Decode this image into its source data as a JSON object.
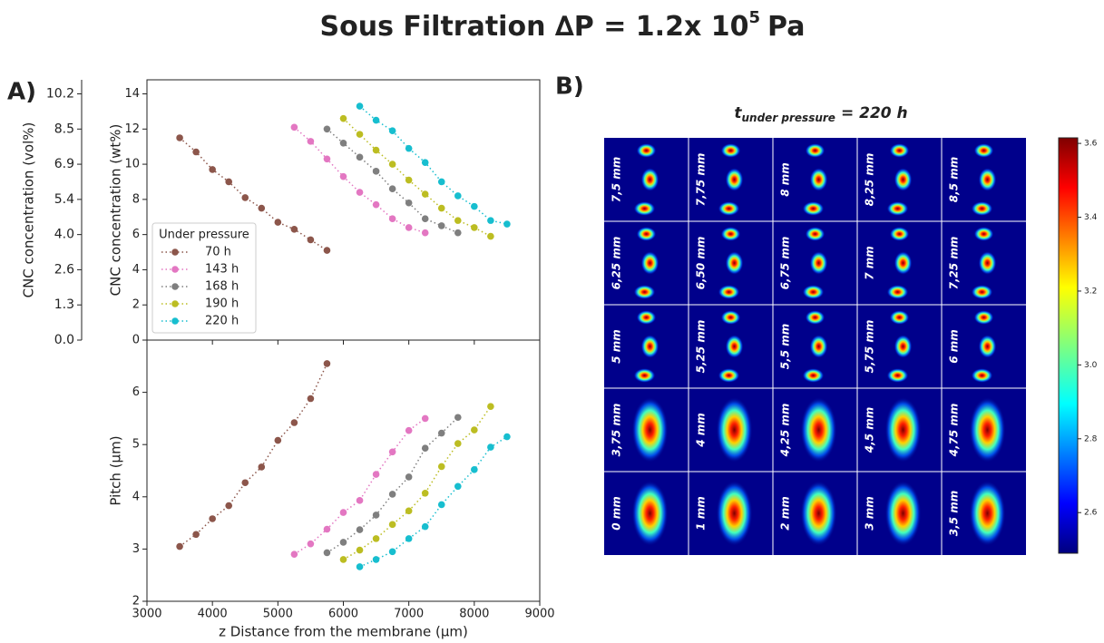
{
  "title": {
    "text": "Sous Filtration ∆P = 1.2x 10",
    "superscript": "5",
    "suffix": "Pa"
  },
  "panel_labels": [
    "A)",
    "B)"
  ],
  "chart_data": [
    {
      "type": "line",
      "ylabel": "CNC concentration (wt%)",
      "y2label": "CNC concentration (vol%)",
      "xlim": [
        3000,
        9000
      ],
      "ylim": [
        0,
        14.8
      ],
      "yticks": [
        0,
        2,
        4,
        6,
        8,
        10,
        12,
        14
      ],
      "y2ticks": [
        {
          "value": 0,
          "label": "0.0"
        },
        1.3,
        2.6,
        {
          "value": 4,
          "label": "4.0"
        },
        5.4,
        6.9,
        8.5,
        10.2
      ],
      "legend_title": "Under pressure",
      "legend": "lower left",
      "series": [
        {
          "name": "70 h",
          "color": "#8c564b",
          "x": [
            3500,
            3750,
            4000,
            4250,
            4500,
            4750,
            5000,
            5250,
            5500,
            5750
          ],
          "values": [
            11.5,
            10.7,
            9.7,
            9.0,
            8.1,
            7.5,
            6.7,
            6.3,
            5.7,
            5.1
          ]
        },
        {
          "name": "143 h",
          "color": "#e377c2",
          "x": [
            5250,
            5500,
            5750,
            6000,
            6250,
            6500,
            6750,
            7000,
            7250
          ],
          "values": [
            12.1,
            11.3,
            10.3,
            9.3,
            8.4,
            7.7,
            6.9,
            6.4,
            6.1
          ]
        },
        {
          "name": "168 h",
          "color": "#7f7f7f",
          "x": [
            5750,
            6000,
            6250,
            6500,
            6750,
            7000,
            7250,
            7500,
            7750
          ],
          "values": [
            12.0,
            11.2,
            10.4,
            9.6,
            8.6,
            7.8,
            6.9,
            6.5,
            6.1
          ]
        },
        {
          "name": "190 h",
          "color": "#bcbd22",
          "x": [
            6000,
            6250,
            6500,
            6750,
            7000,
            7250,
            7500,
            7750,
            8000,
            8250
          ],
          "values": [
            12.6,
            11.7,
            10.8,
            10.0,
            9.1,
            8.3,
            7.5,
            6.8,
            6.4,
            5.9
          ]
        },
        {
          "name": "220 h",
          "color": "#17becf",
          "x": [
            6250,
            6500,
            6750,
            7000,
            7250,
            7500,
            7750,
            8000,
            8250,
            8500
          ],
          "values": [
            13.3,
            12.5,
            11.9,
            10.9,
            10.1,
            9.0,
            8.2,
            7.6,
            6.8,
            6.6
          ]
        }
      ]
    },
    {
      "type": "line",
      "xlabel": "z Distance from the membrane (µm)",
      "ylabel": "Pitch (µm)",
      "xlim": [
        3000,
        9000
      ],
      "xticks": [
        3000,
        4000,
        5000,
        6000,
        7000,
        8000,
        9000
      ],
      "ylim": [
        2,
        7
      ],
      "yticks": [
        2,
        3,
        4,
        5,
        6
      ],
      "series": [
        {
          "name": "70 h",
          "color": "#8c564b",
          "x": [
            3500,
            3750,
            4000,
            4250,
            4500,
            4750,
            5000,
            5250,
            5500,
            5750
          ],
          "values": [
            3.05,
            3.28,
            3.58,
            3.83,
            4.27,
            4.57,
            5.08,
            5.42,
            5.88,
            6.55
          ]
        },
        {
          "name": "143 h",
          "color": "#e377c2",
          "x": [
            5250,
            5500,
            5750,
            6000,
            6250,
            6500,
            6750,
            7000,
            7250
          ],
          "values": [
            2.9,
            3.1,
            3.38,
            3.7,
            3.93,
            4.43,
            4.86,
            5.27,
            5.5
          ]
        },
        {
          "name": "168 h",
          "color": "#7f7f7f",
          "x": [
            5750,
            6000,
            6250,
            6500,
            6750,
            7000,
            7250,
            7500,
            7750
          ],
          "values": [
            2.93,
            3.13,
            3.37,
            3.65,
            4.05,
            4.38,
            4.93,
            5.22,
            5.52
          ]
        },
        {
          "name": "190 h",
          "color": "#bcbd22",
          "x": [
            6000,
            6250,
            6500,
            6750,
            7000,
            7250,
            7500,
            7750,
            8000,
            8250
          ],
          "values": [
            2.8,
            2.98,
            3.2,
            3.47,
            3.73,
            4.07,
            4.58,
            5.02,
            5.28,
            5.73
          ]
        },
        {
          "name": "220 h",
          "color": "#17becf",
          "x": [
            6250,
            6500,
            6750,
            7000,
            7250,
            7500,
            7750,
            8000,
            8250,
            8500
          ],
          "values": [
            2.66,
            2.8,
            2.95,
            3.2,
            3.43,
            3.85,
            4.2,
            4.52,
            4.95,
            5.15
          ]
        }
      ]
    }
  ],
  "panel_b": {
    "title": "t",
    "title_subscript": "under pressure",
    "title_suffix": "= 220 h",
    "cells": [
      [
        "7,5 mm",
        "7,75 mm",
        "8 mm",
        "8,25 mm",
        "8,5 mm"
      ],
      [
        "6,25 mm",
        "6,50 mm",
        "6,75 mm",
        "7 mm",
        "7,25 mm"
      ],
      [
        "5 mm",
        "5,25 mm",
        "5,5 mm",
        "5,75 mm",
        "6 mm"
      ],
      [
        "3,75 mm",
        "4 mm",
        "4,25 mm",
        "4,5 mm",
        "4,75 mm"
      ],
      [
        "0 mm",
        "1 mm",
        "2 mm",
        "3 mm",
        "3,5 mm"
      ]
    ],
    "clim": [
      2.49,
      3.615
    ],
    "colorbar_ticks": [
      2.6,
      2.8,
      {
        "value": 3.0,
        "label": "3.0"
      },
      3.2,
      3.4,
      3.6
    ]
  }
}
